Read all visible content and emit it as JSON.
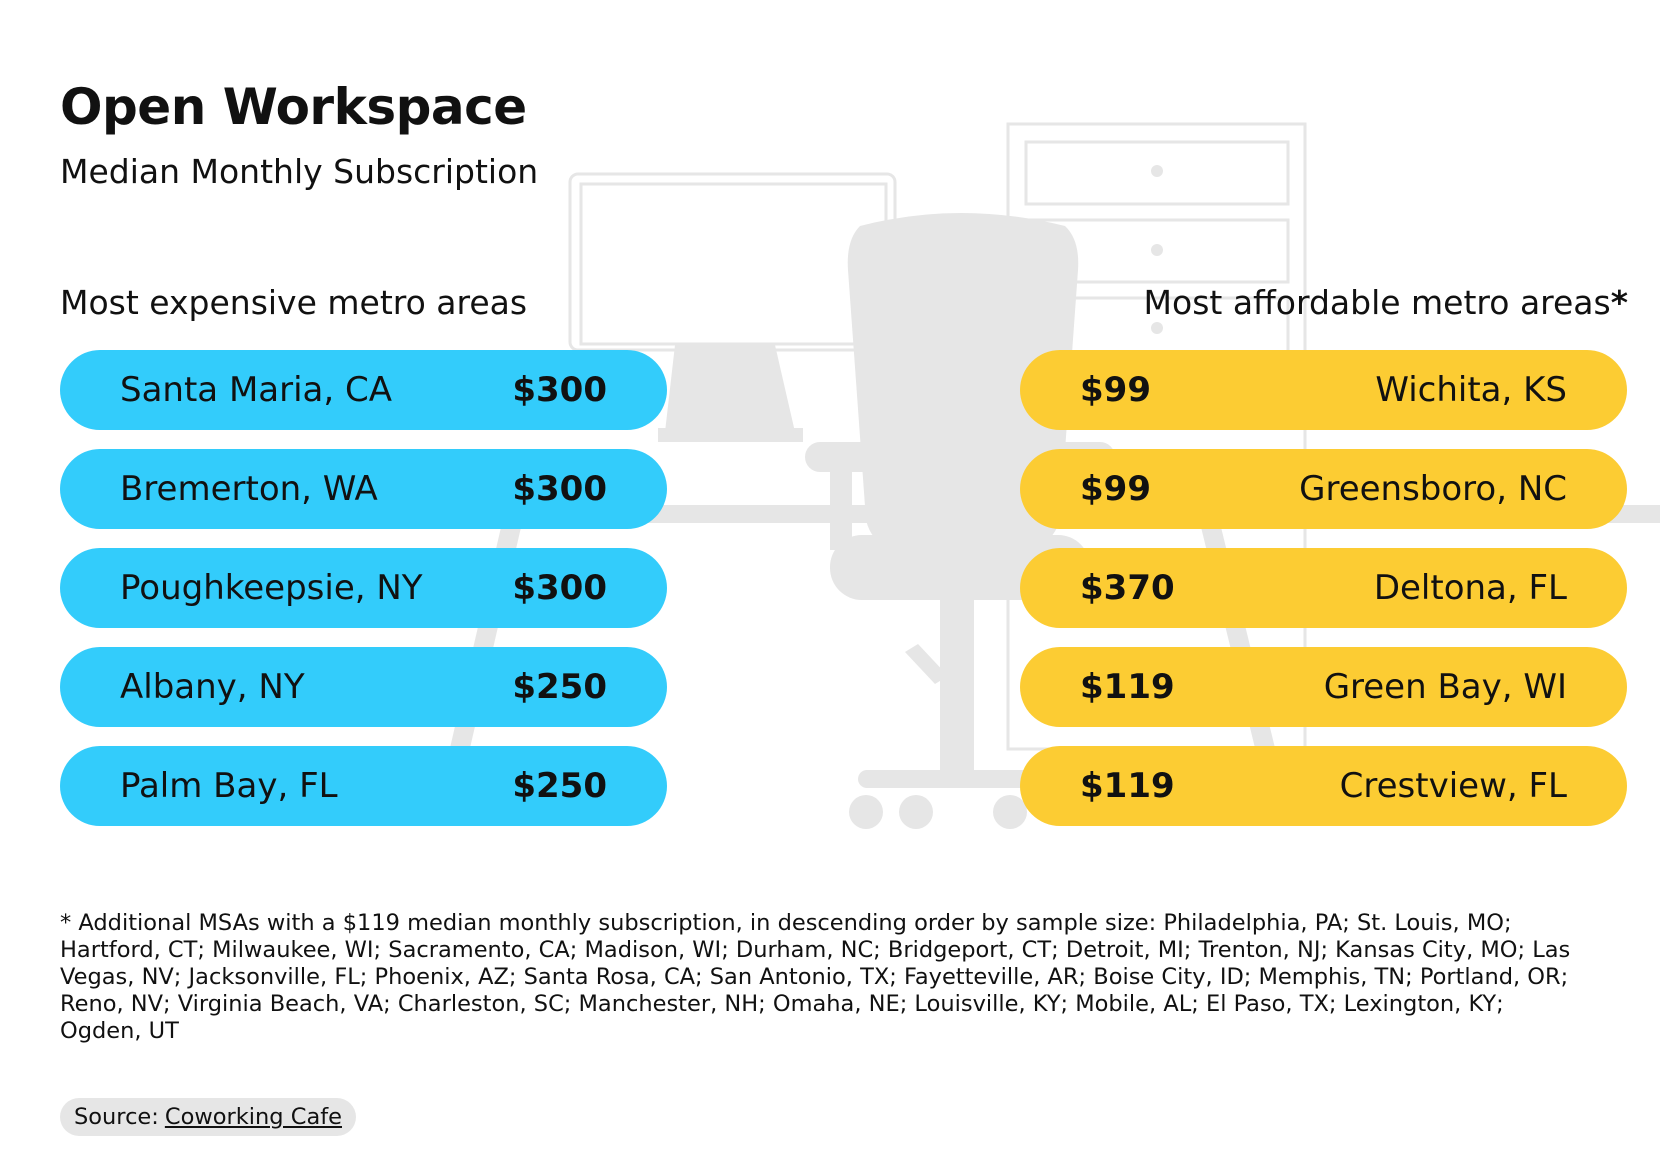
{
  "header": {
    "title": "Open Workspace",
    "subtitle": "Median Monthly Subscription"
  },
  "sections": {
    "expensive_label": "Most expensive metro areas",
    "affordable_label": "Most affordable metro areas",
    "affordable_marker": "*"
  },
  "chart_data": {
    "type": "table",
    "title": "Open Workspace",
    "subtitle": "Median Monthly Subscription",
    "series": [
      {
        "name": "Most expensive metro areas",
        "color": "#33ccfb",
        "rows": [
          {
            "area": "Santa Maria, CA",
            "price": "$300",
            "value": 300
          },
          {
            "area": "Bremerton, WA",
            "price": "$300",
            "value": 300
          },
          {
            "area": "Poughkeepsie, NY",
            "price": "$300",
            "value": 300
          },
          {
            "area": "Albany, NY",
            "price": "$250",
            "value": 250
          },
          {
            "area": "Palm Bay, FL",
            "price": "$250",
            "value": 250
          }
        ]
      },
      {
        "name": "Most affordable metro areas*",
        "color": "#fccc33",
        "rows": [
          {
            "area": "Wichita, KS",
            "price": "$99",
            "value": 99
          },
          {
            "area": "Greensboro, NC",
            "price": "$99",
            "value": 99
          },
          {
            "area": "Deltona, FL",
            "price": "$370",
            "value": 370
          },
          {
            "area": "Green Bay, WI",
            "price": "$119",
            "value": 119
          },
          {
            "area": "Crestview, FL",
            "price": "$119",
            "value": 119
          }
        ]
      }
    ]
  },
  "footnote": "* Additional MSAs with a $119 median monthly subscription, in descending order by sample size: Philadelphia, PA; St. Louis, MO; Hartford, CT; Milwaukee, WI; Sacramento, CA; Madison, WI; Durham, NC; Bridgeport, CT; Detroit, MI; Trenton, NJ; Kansas City, MO; Las Vegas, NV; Jacksonville, FL; Phoenix, AZ; Santa Rosa, CA; San Antonio, TX; Fayetteville, AR; Boise City, ID; Memphis, TN; Portland, OR; Reno, NV; Virginia Beach, VA; Charleston, SC; Manchester, NH; Omaha, NE; Louisville, KY; Mobile, AL; El Paso, TX; Lexington, KY; Ogden, UT",
  "source": {
    "label": "Source:",
    "link_text": "Coworking Cafe"
  },
  "colors": {
    "expensive": "#33ccfb",
    "affordable": "#fccc33",
    "illustration": "#e8e8e8"
  },
  "background": {
    "illustration": "office-desk-chair-cabinet-icon"
  }
}
